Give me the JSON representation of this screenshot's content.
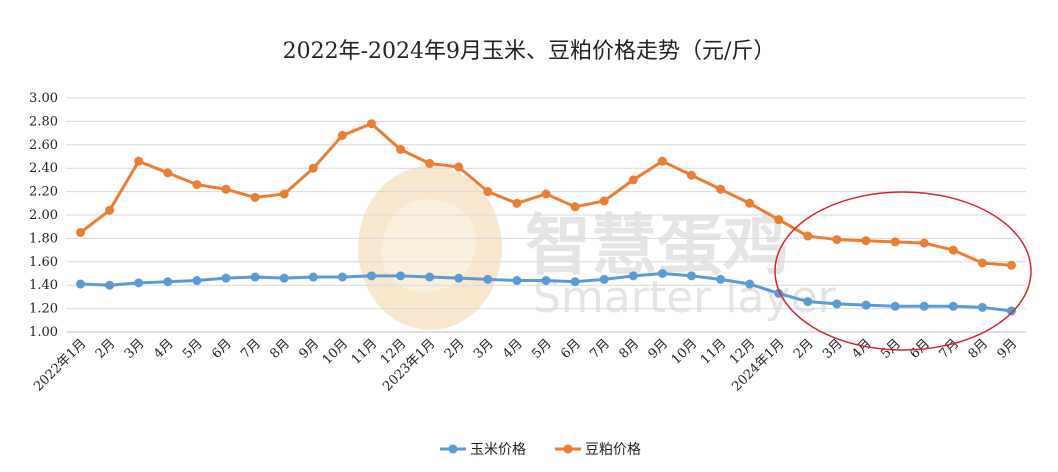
{
  "chart_data": {
    "type": "line",
    "title": "2022年-2024年9月玉米、豆粕价格走势（元/斤）",
    "ylim": [
      1.0,
      3.0
    ],
    "y_ticks": [
      "3.00",
      "2.80",
      "2.60",
      "2.40",
      "2.20",
      "2.00",
      "1.80",
      "1.60",
      "1.40",
      "1.20",
      "1.00"
    ],
    "grid": true,
    "legend_position": "bottom",
    "categories": [
      "2022年1月",
      "2月",
      "3月",
      "4月",
      "5月",
      "6月",
      "7月",
      "8月",
      "9月",
      "10月",
      "11月",
      "12月",
      "2023年1月",
      "2月",
      "3月",
      "4月",
      "5月",
      "6月",
      "7月",
      "8月",
      "9月",
      "10月",
      "11月",
      "12月",
      "2024年1月",
      "2月",
      "3月",
      "4月",
      "5月",
      "6月",
      "7月",
      "8月",
      "9月"
    ],
    "series": [
      {
        "name": "玉米价格",
        "color": "#5b9bd5",
        "values": [
          1.41,
          1.4,
          1.42,
          1.43,
          1.44,
          1.46,
          1.47,
          1.46,
          1.47,
          1.47,
          1.48,
          1.48,
          1.47,
          1.46,
          1.45,
          1.44,
          1.44,
          1.43,
          1.45,
          1.48,
          1.5,
          1.48,
          1.45,
          1.41,
          1.33,
          1.26,
          1.24,
          1.23,
          1.22,
          1.22,
          1.22,
          1.21,
          1.18
        ]
      },
      {
        "name": "豆粕价格",
        "color": "#ed7d31",
        "values": [
          1.85,
          2.04,
          2.46,
          2.36,
          2.26,
          2.22,
          2.15,
          2.18,
          2.4,
          2.68,
          2.78,
          2.56,
          2.44,
          2.41,
          2.2,
          2.1,
          2.18,
          2.07,
          2.12,
          2.3,
          2.46,
          2.34,
          2.22,
          2.1,
          1.96,
          1.82,
          1.79,
          1.78,
          1.77,
          1.76,
          1.7,
          1.59,
          1.57
        ]
      }
    ],
    "annotation": {
      "shape": "ellipse",
      "color": "#d9252a"
    }
  },
  "watermark": {
    "cn": "智慧蛋鸡",
    "en": "Smarter layer"
  }
}
